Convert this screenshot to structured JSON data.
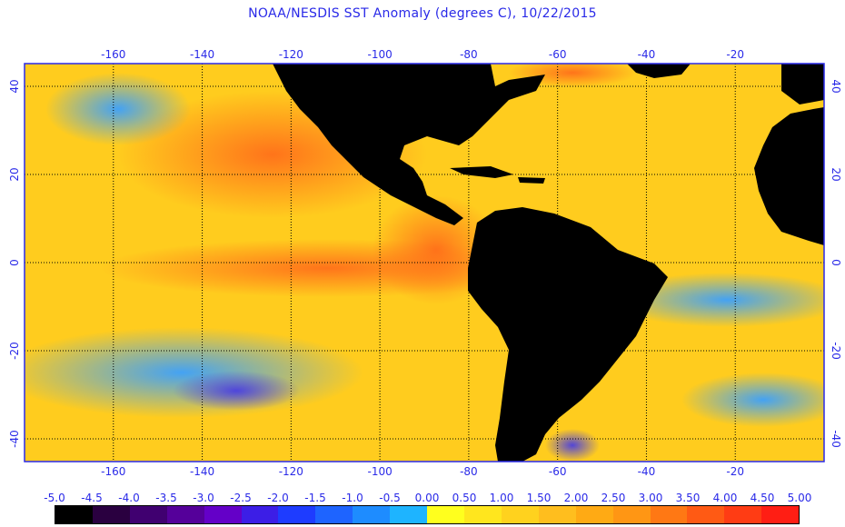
{
  "title": "NOAA/NESDIS SST Anomaly (degrees C), 10/22/2015",
  "lon_ticks": [
    "-160",
    "-140",
    "-120",
    "-100",
    "-80",
    "-60",
    "-40",
    "-20"
  ],
  "lat_ticks_left": [
    "40",
    "20",
    "0",
    "-20",
    "-40"
  ],
  "lat_ticks_right": [
    "40",
    "20",
    "0",
    "-20",
    "-40"
  ],
  "colorbar": {
    "labels": [
      "-5.0",
      "-4.5",
      "-4.0",
      "-3.5",
      "-3.0",
      "-2.5",
      "-2.0",
      "-1.5",
      "-1.0",
      "-0.5",
      "0.00",
      "0.50",
      "1.00",
      "1.50",
      "2.00",
      "2.50",
      "3.00",
      "3.50",
      "4.00",
      "4.50",
      "5.00"
    ],
    "colors": [
      "#000000",
      "#2a0040",
      "#400070",
      "#55009a",
      "#6400c8",
      "#3c1ee6",
      "#1e3cff",
      "#1e64ff",
      "#1e8cff",
      "#1eb4ff",
      "#ffff1e",
      "#ffe61e",
      "#ffd21e",
      "#ffbe1e",
      "#ffaa14",
      "#ff9614",
      "#ff7814",
      "#ff5a14",
      "#ff3c14",
      "#ff1e14"
    ]
  },
  "colors": {
    "frame": "#2a2ae8",
    "land": "#000000",
    "gridline": "#000000"
  }
}
